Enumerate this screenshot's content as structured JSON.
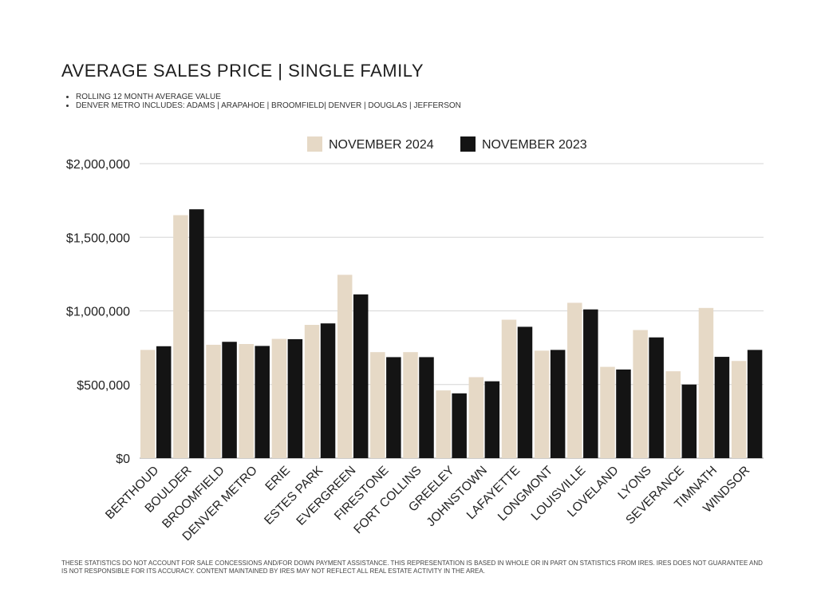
{
  "header": {
    "title": "AVERAGE SALES PRICE | SINGLE FAMILY",
    "notes": [
      "ROLLING 12 MONTH AVERAGE VALUE",
      "DENVER METRO INCLUDES: ADAMS | ARAPAHOE | BROOMFIELD| DENVER | DOUGLAS | JEFFERSON"
    ]
  },
  "footer": {
    "disclaimer": "THESE STATISTICS DO NOT ACCOUNT FOR SALE CONCESSIONS AND/FOR DOWN PAYMENT ASSISTANCE. THIS REPRESENTATION IS BASED IN WHOLE OR IN PART ON STATISTICS FROM IRES. IRES DOES NOT GUARANTEE AND IS NOT RESPONSIBLE FOR ITS ACCURACY. CONTENT MAINTAINED BY IRES MAY NOT REFLECT ALL REAL ESTATE ACTIVITY IN THE AREA."
  },
  "chart_data": {
    "type": "bar",
    "title": "AVERAGE SALES PRICE | SINGLE FAMILY",
    "categories": [
      "BERTHOUD",
      "BOULDER",
      "BROOMFIELD",
      "DENVER METRO",
      "ERIE",
      "ESTES PARK",
      "EVERGREEN",
      "FIRESTONE",
      "FORT COLLINS",
      "GREELEY",
      "JOHNSTOWN",
      "LAFAYETTE",
      "LONGMONT",
      "LOUISVILLE",
      "LOVELAND",
      "LYONS",
      "SEVERANCE",
      "TIMNATH",
      "WINDSOR"
    ],
    "series": [
      {
        "name": "NOVEMBER 2024",
        "color": "#e6d9c6",
        "values": [
          735000,
          1650000,
          770000,
          775000,
          810000,
          905000,
          1245000,
          720000,
          720000,
          460000,
          550000,
          940000,
          730000,
          1055000,
          620000,
          870000,
          590000,
          1020000,
          660000
        ]
      },
      {
        "name": "NOVEMBER 2023",
        "color": "#141414",
        "values": [
          760000,
          1690000,
          790000,
          762000,
          808000,
          915000,
          1112000,
          686000,
          686000,
          440000,
          522000,
          892000,
          735000,
          1010000,
          602000,
          820000,
          500000,
          688000,
          735000
        ]
      }
    ],
    "ylim": [
      0,
      2000000
    ],
    "yticks": [
      0,
      500000,
      1000000,
      1500000,
      2000000
    ],
    "ytick_labels": [
      "$0",
      "$500,000",
      "$1,000,000",
      "$1,500,000",
      "$2,000,000"
    ],
    "grid": true,
    "legend": "top-center",
    "xlabel": "",
    "ylabel": ""
  }
}
